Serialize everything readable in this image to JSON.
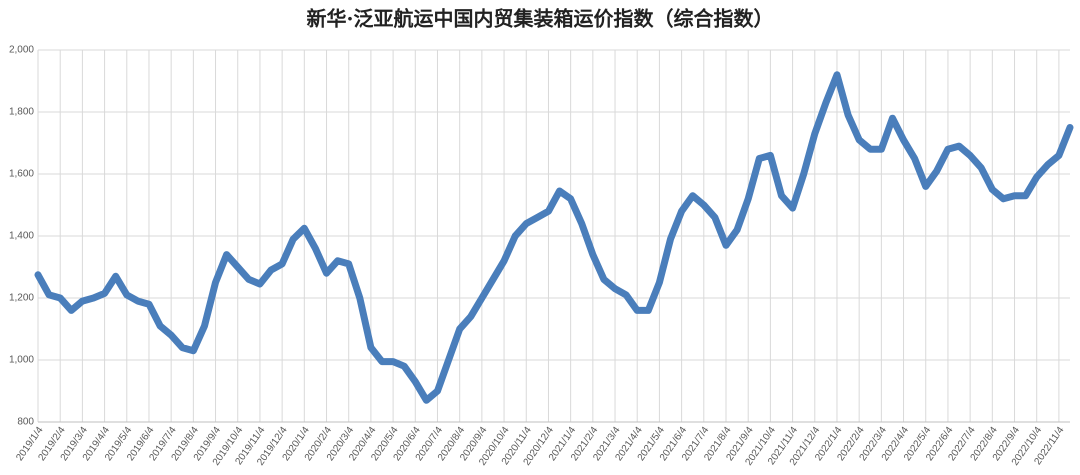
{
  "chart_data": {
    "type": "line",
    "title": "新华·泛亚航运中国内贸集装箱运价指数（综合指数）",
    "categories": [
      "2019/1/4",
      null,
      "2019/2/4",
      null,
      "2019/3/4",
      null,
      "2019/4/4",
      null,
      "2019/5/4",
      null,
      "2019/6/4",
      null,
      "2019/7/4",
      null,
      "2019/8/4",
      null,
      "2019/9/4",
      null,
      "2019/10/4",
      null,
      "2019/11/4",
      null,
      "2019/12/4",
      null,
      "2020/1/4",
      null,
      "2020/2/4",
      null,
      "2020/3/4",
      null,
      "2020/4/4",
      null,
      "2020/5/4",
      null,
      "2020/6/4",
      null,
      "2020/7/4",
      null,
      "2020/8/4",
      null,
      "2020/9/4",
      null,
      "2020/10/4",
      null,
      "2020/11/4",
      null,
      "2020/12/4",
      null,
      "2021/1/4",
      null,
      "2021/2/4",
      null,
      "2021/3/4",
      null,
      "2021/4/4",
      null,
      "2021/5/4",
      null,
      "2021/6/4",
      null,
      "2021/7/4",
      null,
      "2021/8/4",
      null,
      "2021/9/4",
      null,
      "2021/10/4",
      null,
      "2021/11/4",
      null,
      "2021/12/4",
      null,
      "2022/1/4",
      null,
      "2022/2/4",
      null,
      "2022/3/4",
      null,
      "2022/4/4",
      null,
      "2022/5/4",
      null,
      "2022/6/4",
      null,
      "2022/7/4",
      null,
      "2022/8/4",
      null,
      "2022/9/4",
      null,
      "2022/10/4",
      null,
      "2022/11/4",
      null
    ],
    "series": [
      {
        "name": "综合指数",
        "color": "#4a7ebb",
        "values": [
          1275,
          1210,
          1200,
          1160,
          1190,
          1200,
          1215,
          1270,
          1210,
          1190,
          1180,
          1110,
          1080,
          1040,
          1030,
          1110,
          1250,
          1340,
          1300,
          1260,
          1245,
          1290,
          1310,
          1390,
          1425,
          1360,
          1280,
          1320,
          1310,
          1200,
          1040,
          995,
          995,
          980,
          930,
          870,
          900,
          1000,
          1100,
          1140,
          1200,
          1260,
          1320,
          1400,
          1440,
          1460,
          1480,
          1545,
          1520,
          1440,
          1340,
          1260,
          1230,
          1210,
          1160,
          1160,
          1250,
          1390,
          1480,
          1530,
          1500,
          1460,
          1370,
          1420,
          1520,
          1650,
          1660,
          1530,
          1490,
          1600,
          1730,
          1830,
          1920,
          1790,
          1710,
          1680,
          1680,
          1780,
          1710,
          1650,
          1560,
          1610,
          1680,
          1690,
          1660,
          1620,
          1550,
          1520,
          1530,
          1530,
          1590,
          1630,
          1660,
          1750
        ]
      }
    ],
    "ylim": [
      800,
      2000
    ],
    "yticks": [
      800,
      {
        "value": 1000,
        "label": "1,000"
      },
      {
        "value": 1200,
        "label": "1,200"
      },
      {
        "value": 1400,
        "label": "1,400"
      },
      {
        "value": 1600,
        "label": "1,600"
      },
      {
        "value": 1800,
        "label": "1,800"
      },
      {
        "value": 2000,
        "label": "2,000"
      }
    ],
    "grid": true
  }
}
